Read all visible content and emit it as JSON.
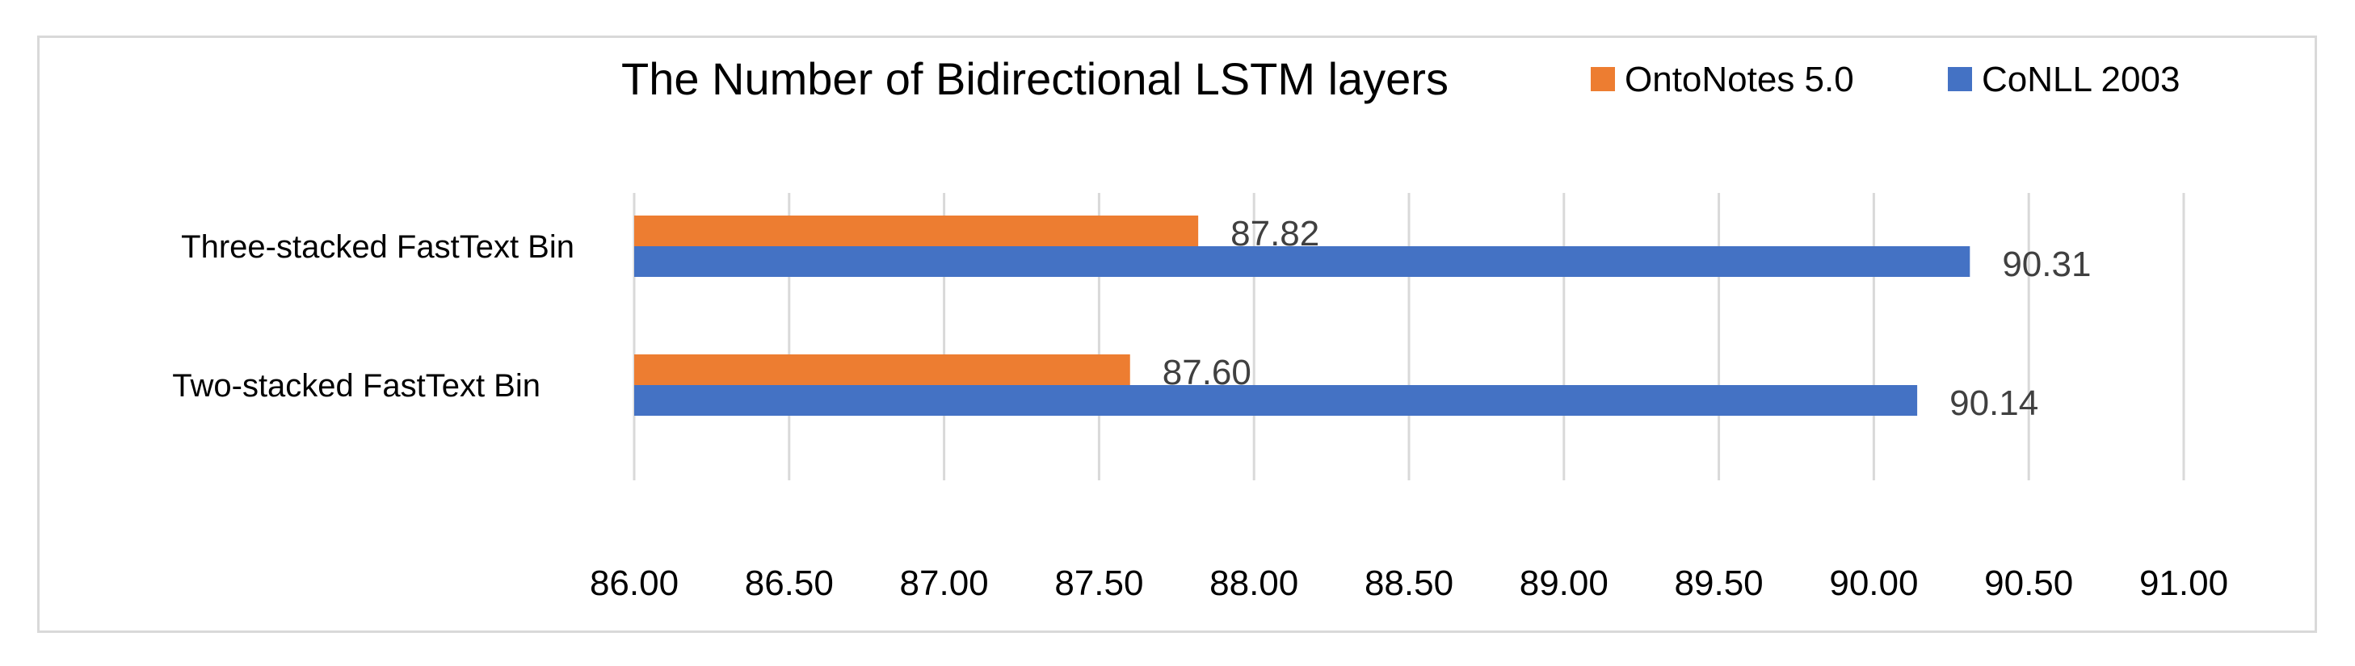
{
  "chart_data": {
    "type": "bar",
    "orientation": "horizontal",
    "title": "The Number of Bidirectional LSTM layers",
    "xlabel": "",
    "ylabel": "",
    "categories": [
      "Two-stacked FastText Bin",
      "Three-stacked FastText Bin"
    ],
    "series": [
      {
        "name": "OntoNotes 5.0",
        "color": "#ed7d31",
        "values": [
          87.6,
          87.82
        ],
        "labels": [
          "87.60",
          "87.82"
        ]
      },
      {
        "name": "CoNLL 2003",
        "color": "#4472c4",
        "values": [
          90.14,
          90.31
        ],
        "labels": [
          "90.14",
          "90.31"
        ]
      }
    ],
    "xlim": [
      86.0,
      91.0
    ],
    "xticks": [
      "86.00",
      "86.50",
      "87.00",
      "87.50",
      "88.00",
      "88.50",
      "89.00",
      "89.50",
      "90.00",
      "90.50",
      "91.00"
    ],
    "grid": "vertical",
    "legend_position": "top-right",
    "gridline_color": "#d9d9d9"
  }
}
